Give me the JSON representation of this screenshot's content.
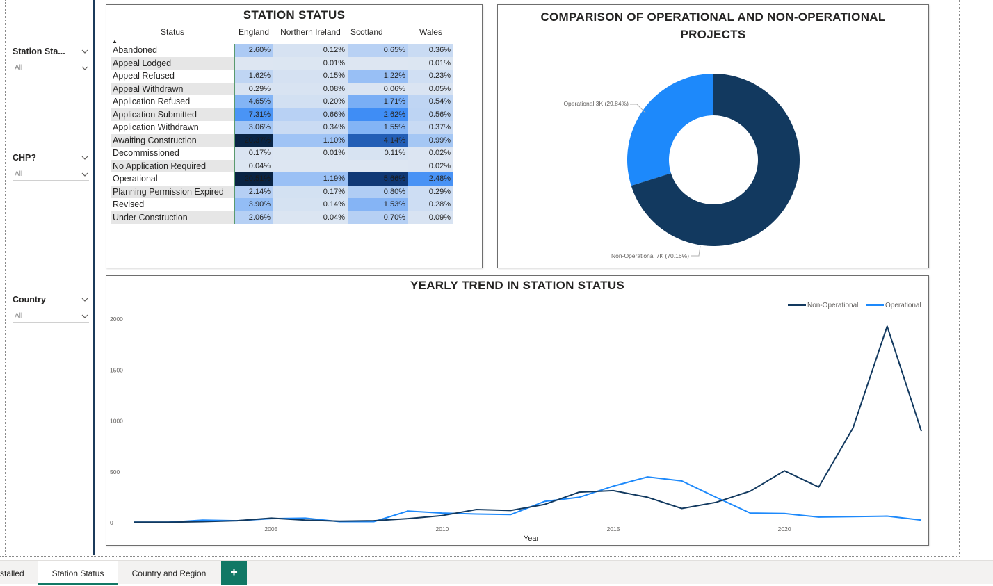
{
  "slicers": [
    {
      "title": "Station Sta...",
      "value": "All"
    },
    {
      "title": "CHP?",
      "value": "All"
    },
    {
      "title": "Country",
      "value": "All"
    }
  ],
  "matrix": {
    "title": "STATION STATUS",
    "columns": [
      "Status",
      "England",
      "Northern Ireland",
      "Scotland",
      "Wales"
    ],
    "rows": [
      {
        "status": "Abandoned",
        "england": "2.60%",
        "ni": "0.12%",
        "scotland": "0.65%",
        "wales": "0.36%"
      },
      {
        "status": "Appeal Lodged",
        "england": "",
        "ni": "0.01%",
        "scotland": "",
        "wales": "0.01%"
      },
      {
        "status": "Appeal Refused",
        "england": "1.62%",
        "ni": "0.15%",
        "scotland": "1.22%",
        "wales": "0.23%"
      },
      {
        "status": "Appeal Withdrawn",
        "england": "0.29%",
        "ni": "0.08%",
        "scotland": "0.06%",
        "wales": "0.05%"
      },
      {
        "status": "Application Refused",
        "england": "4.65%",
        "ni": "0.20%",
        "scotland": "1.71%",
        "wales": "0.54%"
      },
      {
        "status": "Application Submitted",
        "england": "7.31%",
        "ni": "0.66%",
        "scotland": "2.62%",
        "wales": "0.56%"
      },
      {
        "status": "Application Withdrawn",
        "england": "3.06%",
        "ni": "0.34%",
        "scotland": "1.55%",
        "wales": "0.37%"
      },
      {
        "status": "Awaiting Construction",
        "england": "20.37%",
        "ni": "1.10%",
        "scotland": "4.14%",
        "wales": "0.99%"
      },
      {
        "status": "Decommissioned",
        "england": "0.17%",
        "ni": "0.01%",
        "scotland": "0.11%",
        "wales": "0.02%"
      },
      {
        "status": "No Application Required",
        "england": "0.04%",
        "ni": "",
        "scotland": "",
        "wales": "0.02%"
      },
      {
        "status": "Operational",
        "england": "20.51%",
        "ni": "1.19%",
        "scotland": "5.66%",
        "wales": "2.48%"
      },
      {
        "status": "Planning Permission Expired",
        "england": "2.14%",
        "ni": "0.17%",
        "scotland": "0.80%",
        "wales": "0.29%"
      },
      {
        "status": "Revised",
        "england": "3.90%",
        "ni": "0.14%",
        "scotland": "1.53%",
        "wales": "0.28%"
      },
      {
        "status": "Under Construction",
        "england": "2.06%",
        "ni": "0.04%",
        "scotland": "0.70%",
        "wales": "0.09%"
      }
    ]
  },
  "donut": {
    "title": "COMPARISON OF OPERATIONAL AND NON-OPERATIONAL PROJECTS",
    "label_operational": "Operational 3K (29.84%)",
    "label_nonoperational": "Non-Operational 7K (70.16%)"
  },
  "tabs": {
    "tab1": "stalled",
    "tab2": "Station Status",
    "tab3": "Country and Region",
    "add": "+"
  },
  "colors": {
    "dark_navy": "#12395f",
    "bright_blue": "#1d89fb",
    "table_base": "#dde6f2",
    "accent_green": "#117865"
  },
  "chart_data": [
    {
      "type": "pie",
      "title": "COMPARISON OF OPERATIONAL AND NON-OPERATIONAL PROJECTS",
      "categories": [
        "Non-Operational",
        "Operational"
      ],
      "values": [
        70.16,
        29.84
      ],
      "labels": [
        "Non-Operational 7K (70.16%)",
        "Operational 3K (29.84%)"
      ],
      "donut": true
    },
    {
      "type": "line",
      "title": "YEARLY TREND IN STATION STATUS",
      "xlabel": "Year",
      "ylabel": "",
      "xlim": [
        2001,
        2024
      ],
      "ylim": [
        0,
        2000
      ],
      "yticks": [
        0,
        500,
        1000,
        1500,
        2000
      ],
      "xticks": [
        2005,
        2010,
        2015,
        2020
      ],
      "legend": "top-right",
      "x": [
        2001,
        2002,
        2003,
        2004,
        2005,
        2006,
        2007,
        2008,
        2009,
        2010,
        2011,
        2012,
        2013,
        2014,
        2015,
        2016,
        2017,
        2018,
        2019,
        2020,
        2021,
        2022,
        2023,
        2024
      ],
      "series": [
        {
          "name": "Non-Operational",
          "color": "#12395f",
          "values": [
            5,
            5,
            10,
            20,
            45,
            25,
            15,
            20,
            40,
            70,
            130,
            120,
            180,
            300,
            315,
            250,
            140,
            200,
            310,
            510,
            350,
            930,
            1930,
            900
          ]
        },
        {
          "name": "Operational",
          "color": "#1d89fb",
          "values": [
            5,
            5,
            25,
            20,
            40,
            45,
            10,
            10,
            115,
            95,
            85,
            80,
            210,
            250,
            360,
            450,
            410,
            250,
            95,
            90,
            55,
            60,
            65,
            25
          ]
        }
      ]
    }
  ]
}
